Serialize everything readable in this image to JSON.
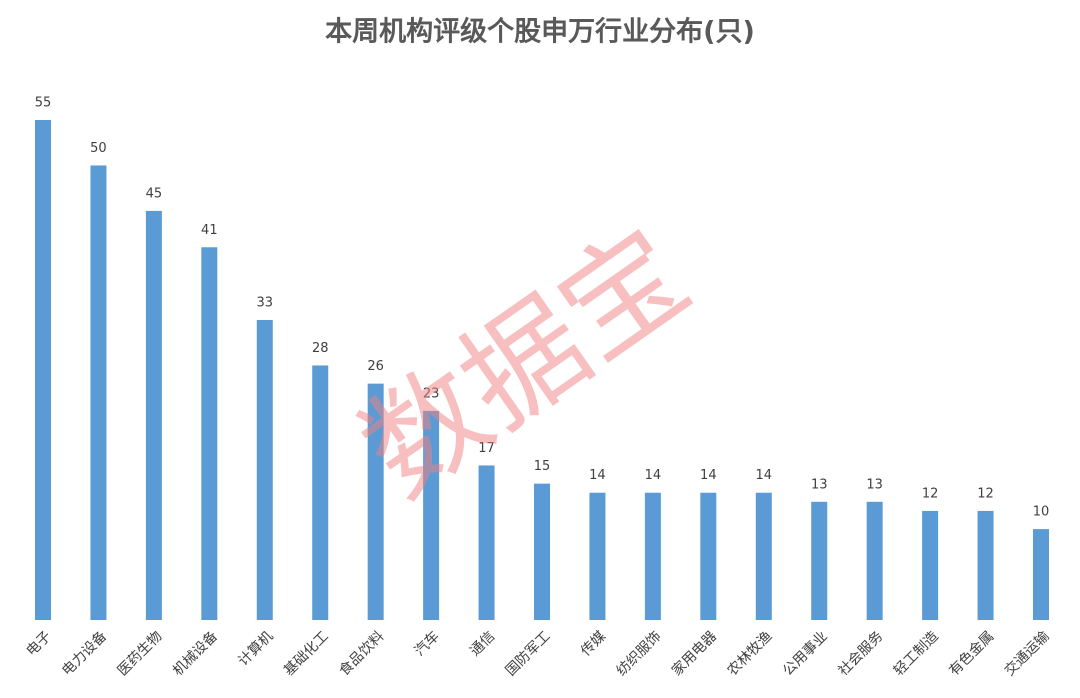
{
  "chart_data": {
    "type": "bar",
    "title": "本周机构评级个股申万行业分布(只)",
    "categories": [
      "电子",
      "电力设备",
      "医药生物",
      "机械设备",
      "计算机",
      "基础化工",
      "食品饮料",
      "汽车",
      "通信",
      "国防军工",
      "传媒",
      "纺织服饰",
      "家用电器",
      "农林牧渔",
      "公用事业",
      "社会服务",
      "轻工制造",
      "有色金属",
      "交通运输"
    ],
    "values": [
      55,
      50,
      45,
      41,
      33,
      28,
      26,
      23,
      17,
      15,
      14,
      14,
      14,
      14,
      13,
      13,
      12,
      12,
      10
    ],
    "color": "#5b9bd5",
    "watermark": "数据宝"
  }
}
